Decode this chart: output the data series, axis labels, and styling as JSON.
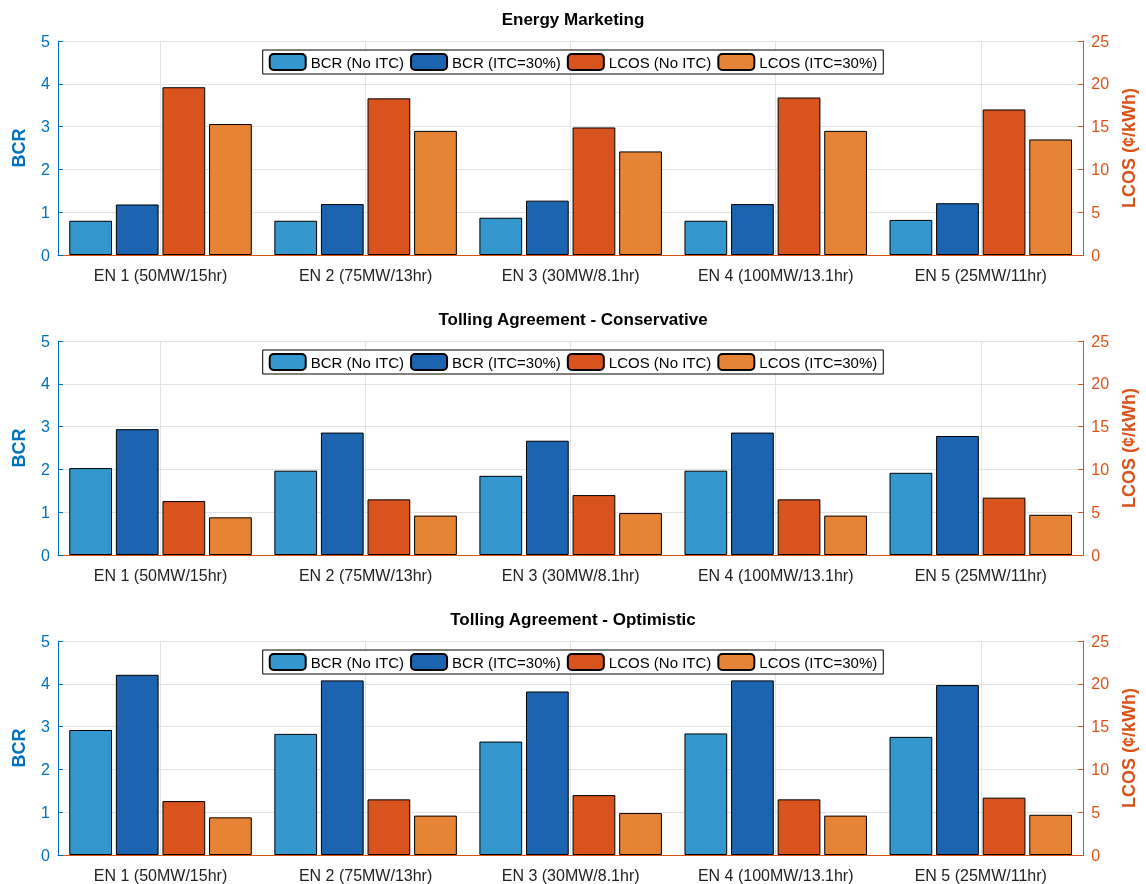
{
  "chart_data": [
    {
      "type": "bar",
      "title": "Energy Marketing",
      "ylabel": "BCR",
      "y2label": "LCOS (¢/kWh)",
      "categories": [
        "EN 1 (50MW/15hr)",
        "EN 2 (75MW/13hr)",
        "EN 3 (30MW/8.1hr)",
        "EN 4 (100MW/13.1hr)",
        "EN 5 (25MW/11hr)"
      ],
      "series": [
        {
          "name": "BCR (No ITC)",
          "color": "#3498cf",
          "values": [
            0.8,
            0.8,
            0.87,
            0.8,
            0.82
          ]
        },
        {
          "name": "BCR (ITC=30%)",
          "color": "#1c64b0",
          "values": [
            1.18,
            1.19,
            1.27,
            1.19,
            1.21
          ]
        },
        {
          "name": "LCOS (No ITC)",
          "color": "#d9531e",
          "axis": "y2",
          "values": [
            19.6,
            18.3,
            14.9,
            18.4,
            17.0
          ]
        },
        {
          "name": "LCOS (ITC=30%)",
          "color": "#e78334",
          "axis": "y2",
          "values": [
            15.3,
            14.5,
            12.1,
            14.5,
            13.5
          ]
        }
      ],
      "ylim": [
        0,
        5
      ],
      "yticks": [
        0,
        1,
        2,
        3,
        4,
        5
      ],
      "y2lim": [
        0,
        25
      ],
      "y2ticks": [
        0,
        5,
        10,
        15,
        20,
        25
      ],
      "grid": true,
      "legend": "top"
    },
    {
      "type": "bar",
      "title": "Tolling Agreement - Conservative",
      "ylabel": "BCR",
      "y2label": "LCOS (¢/kWh)",
      "categories": [
        "EN 1 (50MW/15hr)",
        "EN 2 (75MW/13hr)",
        "EN 3 (30MW/8.1hr)",
        "EN 4 (100MW/13.1hr)",
        "EN 5 (25MW/11hr)"
      ],
      "series": [
        {
          "name": "BCR (No ITC)",
          "color": "#3498cf",
          "values": [
            2.03,
            1.97,
            1.85,
            1.97,
            1.92
          ]
        },
        {
          "name": "BCR (ITC=30%)",
          "color": "#1c64b0",
          "values": [
            2.94,
            2.86,
            2.67,
            2.86,
            2.78
          ]
        },
        {
          "name": "LCOS (No ITC)",
          "color": "#d9531e",
          "axis": "y2",
          "values": [
            6.3,
            6.5,
            7.0,
            6.5,
            6.7
          ]
        },
        {
          "name": "LCOS (ITC=30%)",
          "color": "#e78334",
          "axis": "y2",
          "values": [
            4.4,
            4.6,
            4.9,
            4.6,
            4.7
          ]
        }
      ],
      "ylim": [
        0,
        5
      ],
      "yticks": [
        0,
        1,
        2,
        3,
        4,
        5
      ],
      "y2lim": [
        0,
        25
      ],
      "y2ticks": [
        0,
        5,
        10,
        15,
        20,
        25
      ],
      "grid": true,
      "legend": "top"
    },
    {
      "type": "bar",
      "title": "Tolling Agreement - Optimistic",
      "ylabel": "BCR",
      "y2label": "LCOS (¢/kWh)",
      "categories": [
        "EN 1 (50MW/15hr)",
        "EN 2 (75MW/13hr)",
        "EN 3 (30MW/8.1hr)",
        "EN 4 (100MW/13.1hr)",
        "EN 5 (25MW/11hr)"
      ],
      "series": [
        {
          "name": "BCR (No ITC)",
          "color": "#3498cf",
          "values": [
            2.92,
            2.83,
            2.65,
            2.84,
            2.76
          ]
        },
        {
          "name": "BCR (ITC=30%)",
          "color": "#1c64b0",
          "values": [
            4.21,
            4.08,
            3.82,
            4.08,
            3.97
          ]
        },
        {
          "name": "LCOS (No ITC)",
          "color": "#d9531e",
          "axis": "y2",
          "values": [
            6.3,
            6.5,
            7.0,
            6.5,
            6.7
          ]
        },
        {
          "name": "LCOS (ITC=30%)",
          "color": "#e78334",
          "axis": "y2",
          "values": [
            4.4,
            4.6,
            4.9,
            4.6,
            4.7
          ]
        }
      ],
      "ylim": [
        0,
        5
      ],
      "yticks": [
        0,
        1,
        2,
        3,
        4,
        5
      ],
      "y2lim": [
        0,
        25
      ],
      "y2ticks": [
        0,
        5,
        10,
        15,
        20,
        25
      ],
      "grid": true,
      "legend": "top"
    }
  ]
}
